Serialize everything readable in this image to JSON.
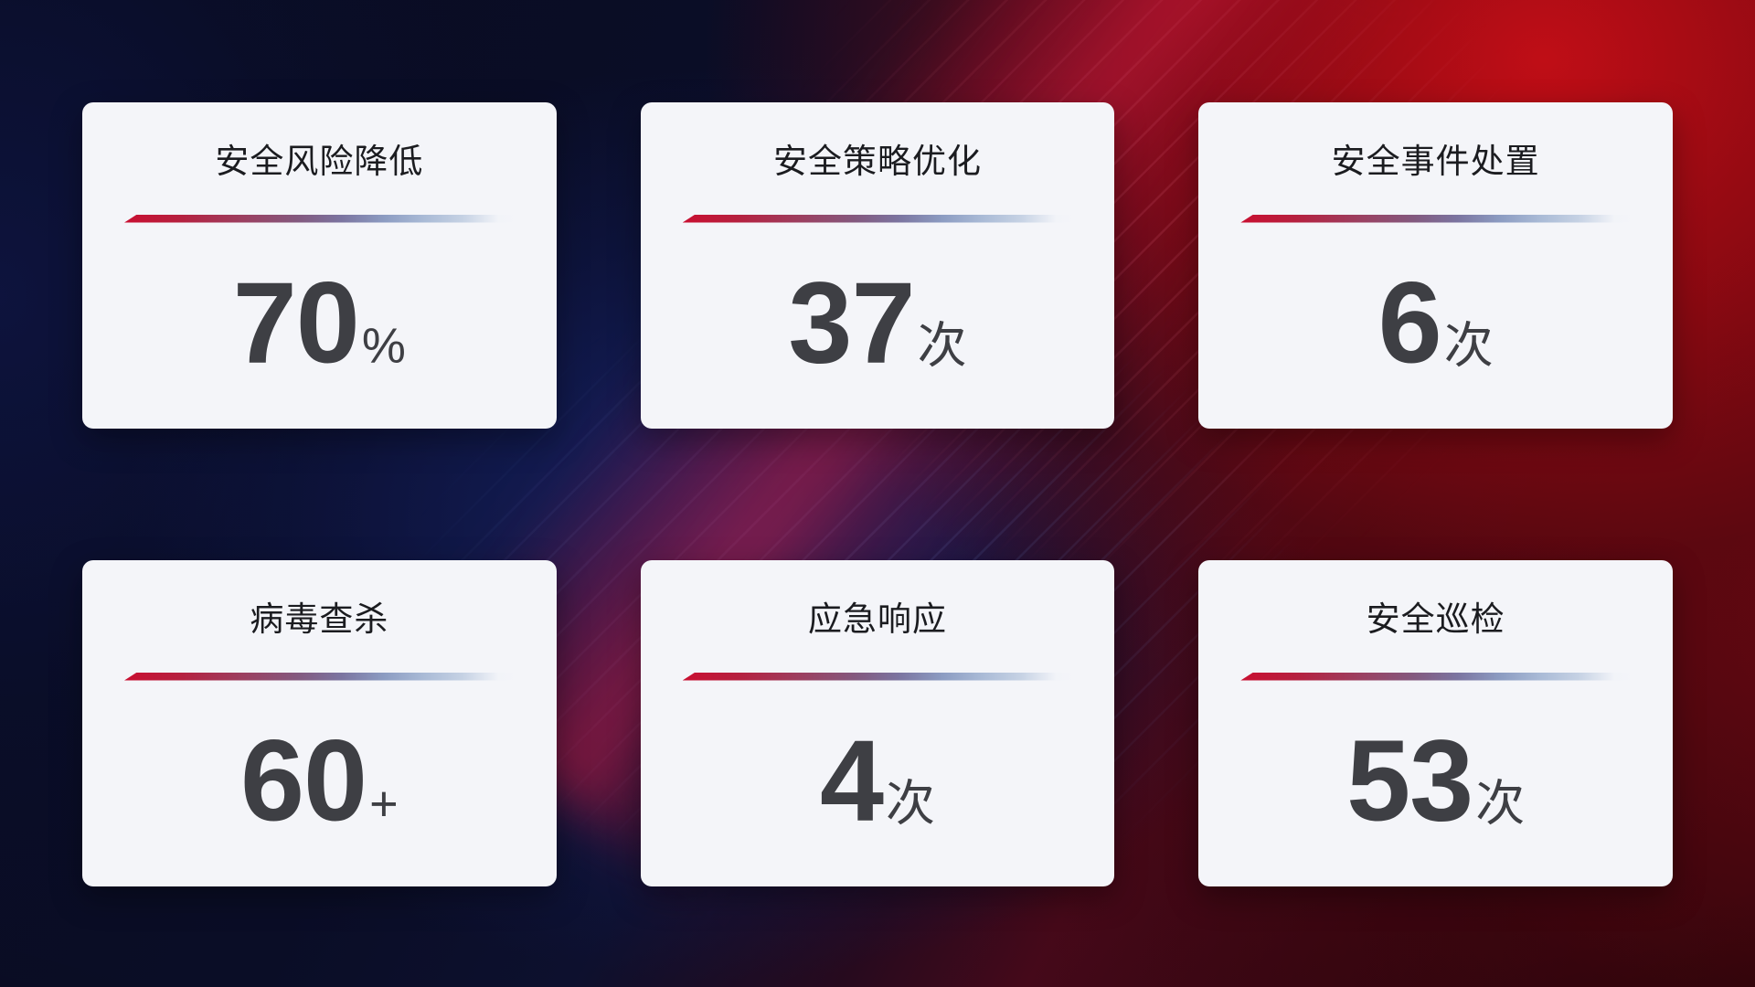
{
  "cards": [
    {
      "title": "安全风险降低",
      "value": "70",
      "unit": "%"
    },
    {
      "title": "安全策略优化",
      "value": "37",
      "unit": "次"
    },
    {
      "title": "安全事件处置",
      "value": "6",
      "unit": "次"
    },
    {
      "title": "病毒查杀",
      "value": "60",
      "unit": "+"
    },
    {
      "title": "应急响应",
      "value": "4",
      "unit": "次"
    },
    {
      "title": "安全巡检",
      "value": "53",
      "unit": "次"
    }
  ],
  "colors": {
    "card_background": "#f4f5f9",
    "title_text": "#1b1c20",
    "value_text": "#3e3f44",
    "divider_gradient_start": "#c90f31",
    "divider_gradient_mid": "#7b74a0",
    "divider_gradient_end": "#c6d2e4",
    "background_navy": "#0a0d26",
    "background_blue_glow": "#18266f",
    "background_red": "#a00d16",
    "background_maroon": "#2a0510"
  }
}
